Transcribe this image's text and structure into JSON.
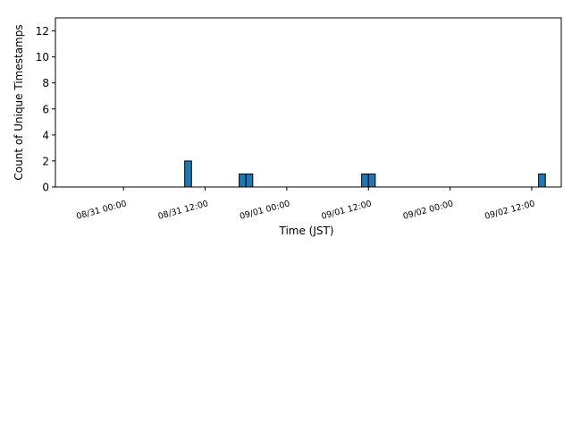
{
  "chart_data": {
    "type": "histogram",
    "xlabel": "Time (JST)",
    "ylabel": "Count of Unique Timestamps",
    "color": "#1f77b4",
    "edgecolor": "#000000",
    "bins": [
      "08/31 09:00",
      "08/31 10:00",
      "08/31 11:00",
      "08/31 12:00",
      "08/31 13:00",
      "08/31 14:00",
      "08/31 15:00",
      "08/31 16:00",
      "08/31 17:00",
      "08/31 18:00",
      "08/31 19:00",
      "08/31 20:00",
      "08/31 21:00",
      "08/31 22:00",
      "08/31 23:00",
      "09/01 00:00",
      "09/01 01:00",
      "09/01 02:00",
      "09/01 03:00",
      "09/01 04:00",
      "09/01 05:00",
      "09/01 06:00",
      "09/01 07:00",
      "09/01 08:00",
      "09/01 09:00",
      "09/01 10:00",
      "09/01 11:00",
      "09/01 12:00",
      "09/01 13:00",
      "09/01 14:00",
      "09/01 15:00",
      "09/01 16:00",
      "09/01 17:00",
      "09/01 18:00",
      "09/01 19:00",
      "09/01 20:00",
      "09/01 21:00",
      "09/01 22:00",
      "09/01 23:00",
      "09/02 00:00",
      "09/02 01:00",
      "09/02 02:00",
      "09/02 03:00",
      "09/02 04:00",
      "09/02 05:00",
      "09/02 06:00",
      "09/02 07:00",
      "09/02 08:00",
      "09/02 09:00",
      "09/02 10:00",
      "09/02 11:00",
      "09/02 12:00",
      "09/02 13:00",
      "09/02 14:00"
    ],
    "values": [
      2,
      0,
      0,
      0,
      0,
      0,
      0,
      0,
      1,
      1,
      0,
      0,
      0,
      0,
      0,
      0,
      0,
      0,
      0,
      0,
      0,
      0,
      0,
      0,
      0,
      0,
      1,
      1,
      0,
      0,
      0,
      0,
      0,
      0,
      0,
      0,
      0,
      0,
      0,
      0,
      0,
      0,
      0,
      0,
      0,
      0,
      0,
      0,
      0,
      0,
      0,
      0,
      1
    ],
    "xlim": [
      "08/30 14:00",
      "09/02 16:20"
    ],
    "xticks": [
      "08/31 00:00",
      "08/31 12:00",
      "09/01 00:00",
      "09/01 12:00",
      "09/02 00:00",
      "09/02 12:00"
    ],
    "ylim": [
      0,
      13
    ],
    "yticks": [
      0,
      2,
      4,
      6,
      8,
      10,
      12
    ]
  }
}
